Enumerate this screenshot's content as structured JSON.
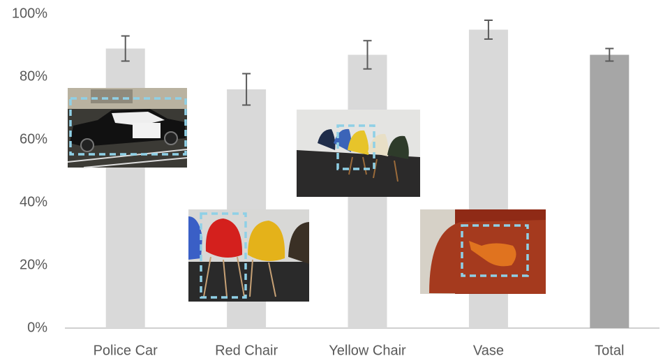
{
  "chart_data": {
    "type": "bar",
    "categories": [
      "Police Car",
      "Red Chair",
      "Yellow Chair",
      "Vase",
      "Total"
    ],
    "values": [
      89,
      76,
      87,
      95,
      87
    ],
    "errors": [
      4,
      5,
      4.5,
      3,
      2
    ],
    "colors": [
      "#d9d9d9",
      "#d9d9d9",
      "#d9d9d9",
      "#d9d9d9",
      "#a6a6a6"
    ],
    "error_color": "#5a5a5a",
    "ylim": [
      0,
      100
    ],
    "yticks": [
      {
        "value": 0,
        "label": "0%"
      },
      {
        "value": 20,
        "label": "20%"
      },
      {
        "value": 40,
        "label": "40%"
      },
      {
        "value": 60,
        "label": "60%"
      },
      {
        "value": 80,
        "label": "80%"
      },
      {
        "value": 100,
        "label": "100%"
      }
    ]
  }
}
